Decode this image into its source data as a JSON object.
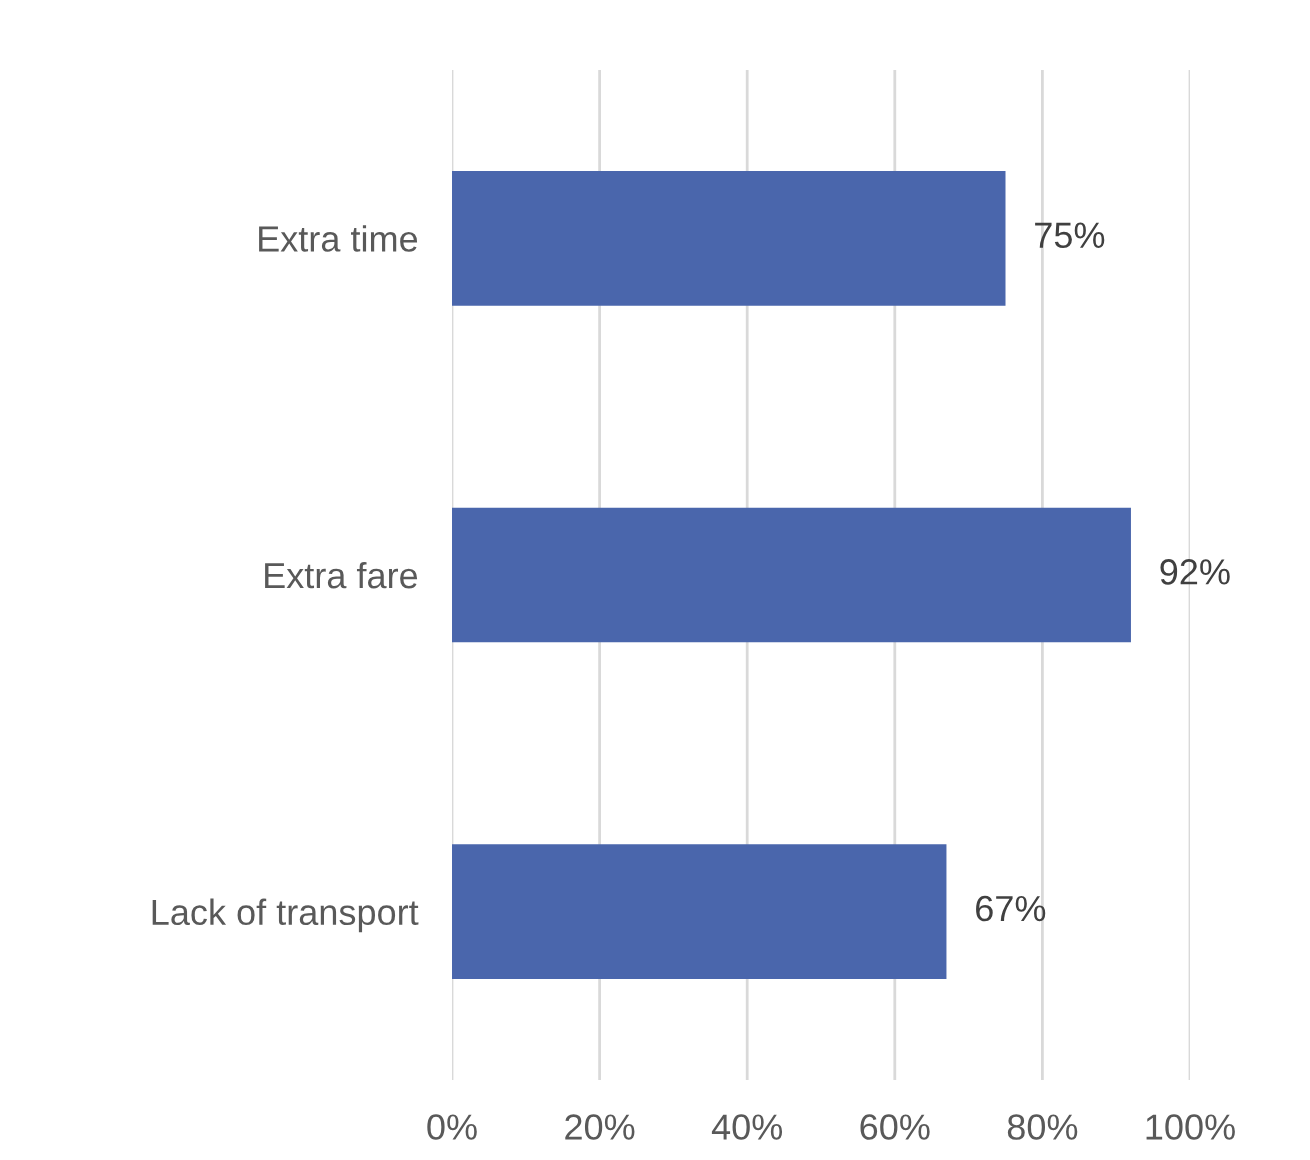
{
  "chart_data": {
    "type": "bar",
    "orientation": "horizontal",
    "categories": [
      "Extra time",
      "Extra fare",
      "Lack of transport"
    ],
    "values": [
      75,
      92,
      67
    ],
    "value_labels": [
      "75%",
      "92%",
      "67%"
    ],
    "color": "#4a66ac",
    "xlim": [
      0,
      100
    ],
    "xticks": [
      {
        "value": 0,
        "label": "0%"
      },
      {
        "value": 20,
        "label": "20%"
      },
      {
        "value": 40,
        "label": "40%"
      },
      {
        "value": 60,
        "label": "60%"
      },
      {
        "value": 80,
        "label": "80%"
      },
      {
        "value": 100,
        "label": "100%"
      }
    ],
    "grid": "x",
    "legend": false
  }
}
